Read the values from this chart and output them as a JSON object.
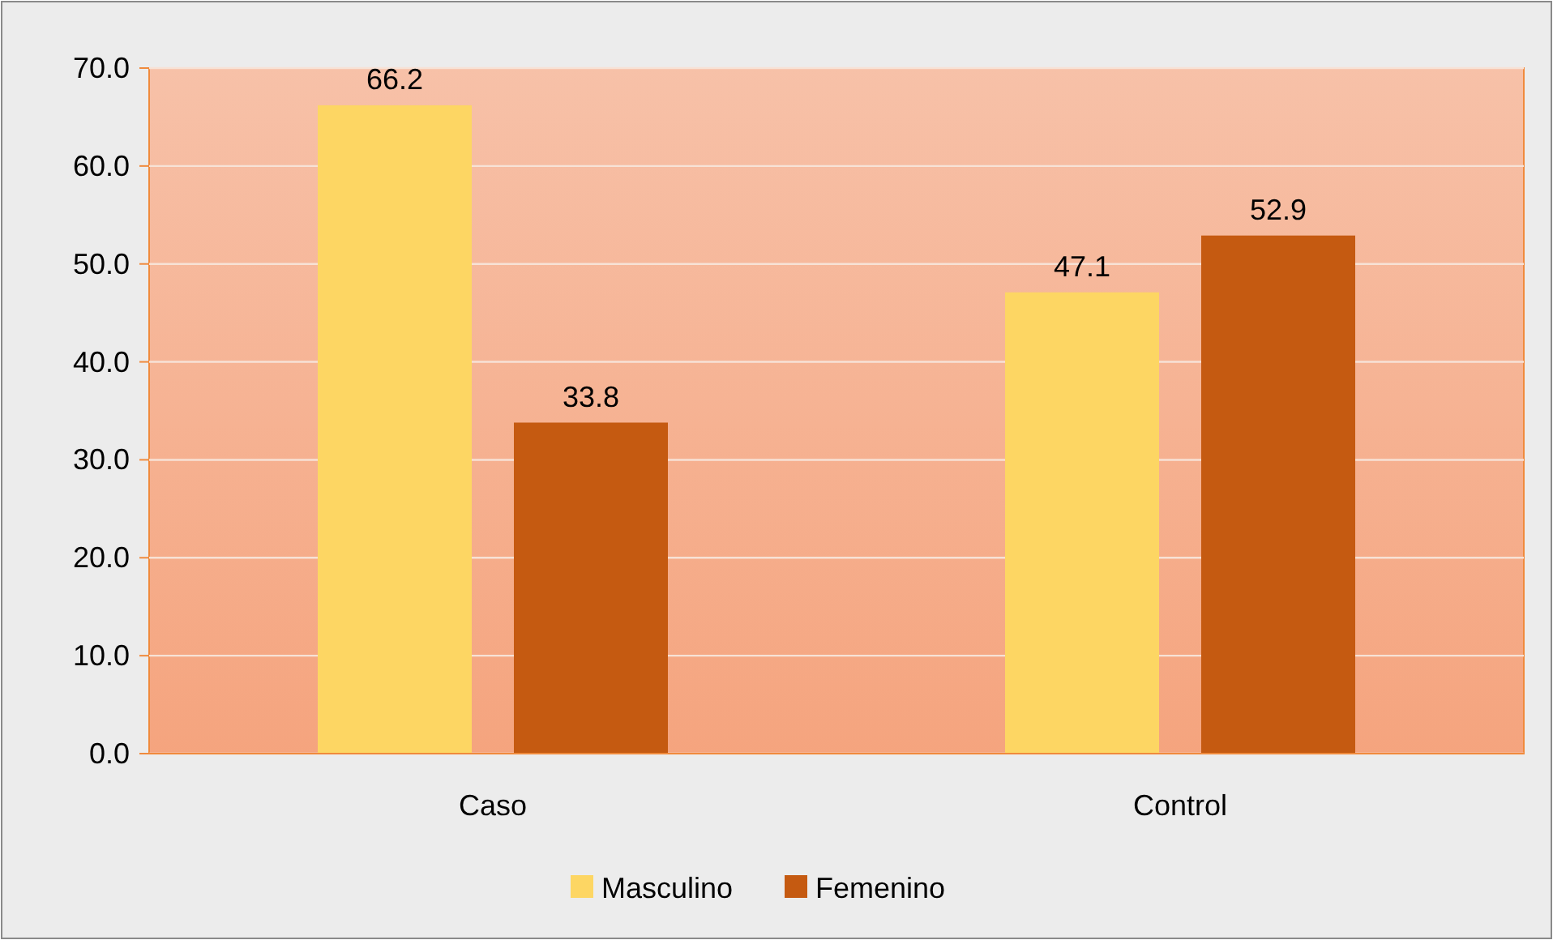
{
  "chart_data": {
    "type": "bar",
    "categories": [
      "Caso",
      "Control"
    ],
    "series": [
      {
        "name": "Masculino",
        "color": "#fdd663",
        "values": [
          66.2,
          47.1
        ]
      },
      {
        "name": "Femenino",
        "color": "#c55a11",
        "values": [
          33.8,
          52.9
        ]
      }
    ],
    "ylim": [
      0,
      70
    ],
    "yticks": [
      {
        "value": 0,
        "label": "0.0"
      },
      {
        "value": 10,
        "label": "10.0"
      },
      {
        "value": 20,
        "label": "20.0"
      },
      {
        "value": 30,
        "label": "30.0"
      },
      {
        "value": 40,
        "label": "40.0"
      },
      {
        "value": 50,
        "label": "50.0"
      },
      {
        "value": 60,
        "label": "60.0"
      },
      {
        "value": 70,
        "label": "70.0"
      }
    ],
    "grid": "y",
    "legend": "bottom",
    "data_labels": true
  }
}
